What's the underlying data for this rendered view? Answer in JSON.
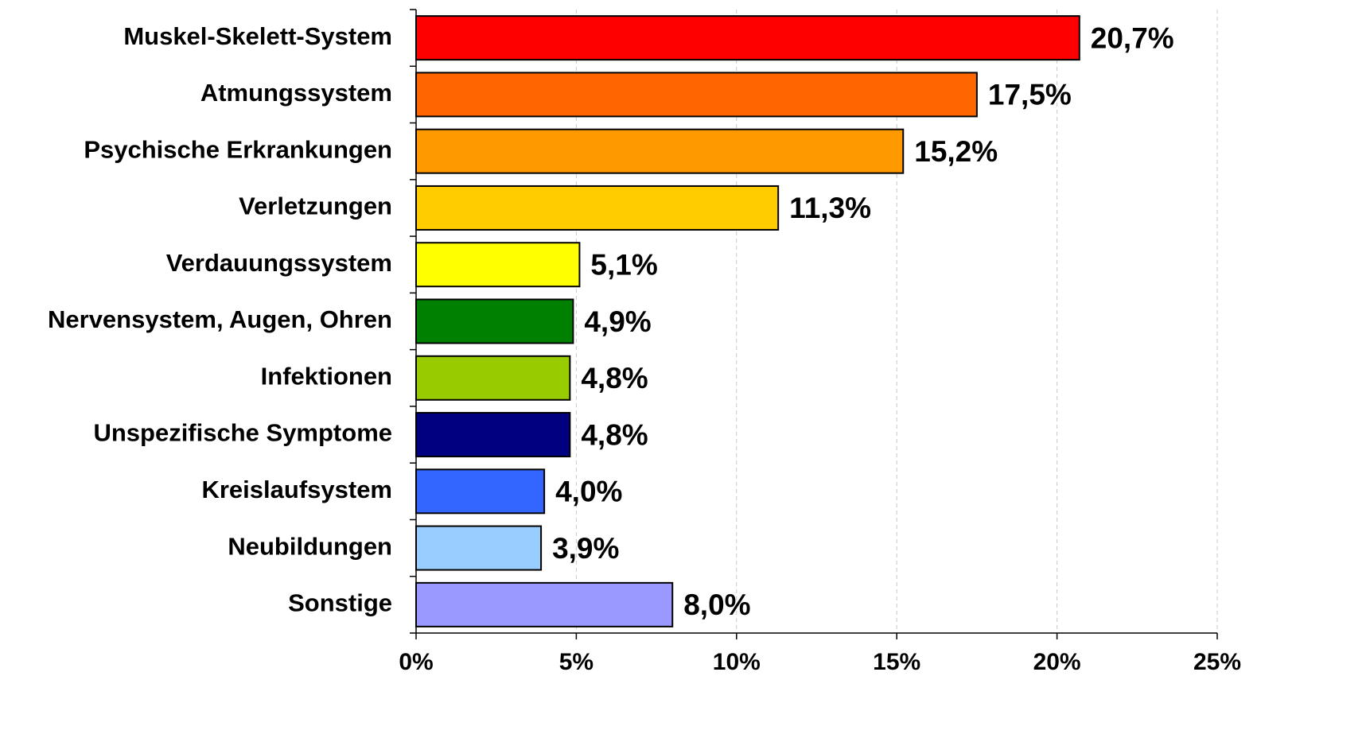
{
  "chart_data": {
    "type": "bar",
    "orientation": "horizontal",
    "categories": [
      "Muskel-Skelett-System",
      "Atmungssystem",
      "Psychische Erkrankungen",
      "Verletzungen",
      "Verdauungssystem",
      "Nervensystem, Augen, Ohren",
      "Infektionen",
      "Unspezifische Symptome",
      "Kreislaufsystem",
      "Neubildungen",
      "Sonstige"
    ],
    "values": [
      20.7,
      17.5,
      15.2,
      11.3,
      5.1,
      4.9,
      4.8,
      4.8,
      4.0,
      3.9,
      8.0
    ],
    "value_labels": [
      "20,7%",
      "17,5%",
      "15,2%",
      "11,3%",
      "5,1%",
      "4,9%",
      "4,8%",
      "4,8%",
      "4,0%",
      "3,9%",
      "8,0%"
    ],
    "colors": [
      "#ff0000",
      "#ff6600",
      "#ff9900",
      "#ffcc00",
      "#ffff00",
      "#008000",
      "#99cc00",
      "#000080",
      "#3366ff",
      "#99ccff",
      "#9999ff"
    ],
    "xlim": [
      0,
      25
    ],
    "xticks": [
      {
        "value": 0,
        "label": "0%"
      },
      {
        "value": 5,
        "label": "5%"
      },
      {
        "value": 10,
        "label": "10%"
      },
      {
        "value": 15,
        "label": "15%"
      },
      {
        "value": 20,
        "label": "20%"
      },
      {
        "value": 25,
        "label": "25%"
      }
    ],
    "grid": true
  }
}
